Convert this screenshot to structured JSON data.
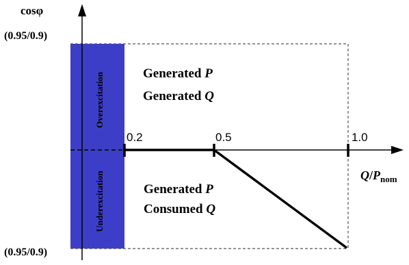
{
  "y_axis": {
    "label": "cosφ",
    "top_value": "(0.95/0.9)",
    "bottom_value": "(0.95/0.9)"
  },
  "x_axis": {
    "label_main": "Q",
    "label_slash": "/",
    "label_p": "P",
    "label_sub": "nom",
    "ticks": [
      "0.2",
      "0.5",
      "1.0"
    ]
  },
  "regions": {
    "over": "Overexcitation",
    "under": "Underexcitation",
    "upper_text": {
      "line1_prefix": "Generated ",
      "line1_var": "P",
      "line2_prefix": "Generated ",
      "line2_var": "Q"
    },
    "lower_text": {
      "line1_prefix": "Generated ",
      "line1_var": "P",
      "line2_prefix": "Consumed ",
      "line2_var": "Q"
    }
  },
  "colors": {
    "band": "#3d3ec8",
    "line": "#000000",
    "dashed": "#555555"
  },
  "characteristic": [
    [
      0.2,
      0
    ],
    [
      0.5,
      0
    ],
    [
      1.0,
      -1
    ]
  ]
}
